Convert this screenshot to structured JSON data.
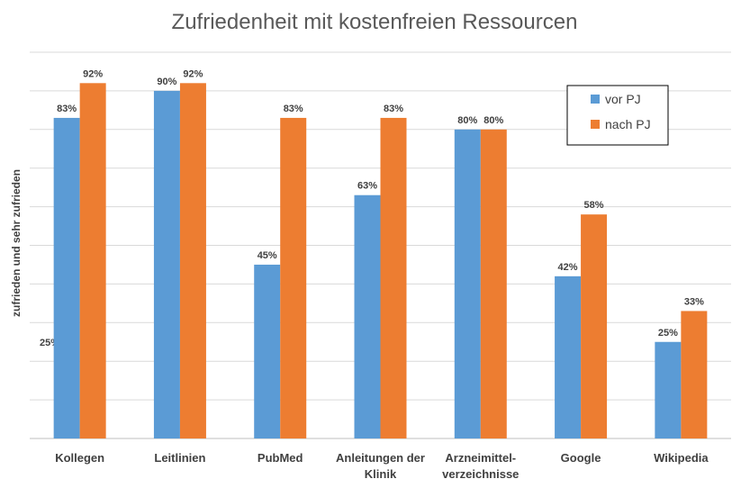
{
  "chart_data": {
    "type": "bar",
    "title": "Zufriedenheit mit  kostenfreien Ressourcen",
    "ylabel": "zufrieden und sehr zufrieden",
    "xlabel": "",
    "ylim": [
      0,
      100
    ],
    "grid": true,
    "legend_position": "top-right",
    "categories": [
      [
        "Kollegen"
      ],
      [
        "Leitlinien"
      ],
      [
        "PubMed"
      ],
      [
        "Anleitungen der",
        "Klinik"
      ],
      [
        "Arzneimittel-",
        "verzeichnisse"
      ],
      [
        "Google"
      ],
      [
        "Wikipedia"
      ]
    ],
    "series": [
      {
        "name": "vor PJ",
        "color": "#5b9bd5",
        "values": [
          83,
          90,
          45,
          63,
          80,
          42,
          25
        ],
        "labels": [
          "83%",
          "90%",
          "45%",
          "63%",
          "80%",
          "42%",
          "25%"
        ]
      },
      {
        "name": "nach PJ",
        "color": "#ed7d31",
        "values": [
          92,
          92,
          83,
          83,
          80,
          58,
          33
        ],
        "labels": [
          "92%",
          "92%",
          "83%",
          "83%",
          "80%",
          "58%",
          "33%"
        ]
      }
    ],
    "ytick_label": "25%"
  }
}
